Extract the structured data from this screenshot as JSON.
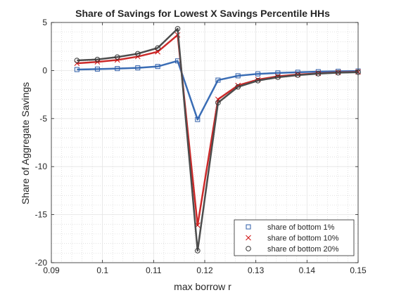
{
  "chart_data": {
    "type": "line",
    "title": "Share of Savings for Lowest X Savings Percentile HHs",
    "xlabel": "max borrow r",
    "ylabel": "Share of Aggregate Savings",
    "xlim": [
      0.09,
      0.15
    ],
    "ylim": [
      -20,
      5
    ],
    "x_ticks": [
      0.09,
      0.1,
      0.11,
      0.12,
      0.13,
      0.14,
      0.15
    ],
    "x_tick_labels": [
      "0.09",
      "0.1",
      "0.11",
      "0.12",
      "0.13",
      "0.14",
      "0.15"
    ],
    "y_ticks": [
      -20,
      -15,
      -10,
      -5,
      0,
      5
    ],
    "y_tick_labels": [
      "-20",
      "-15",
      "-10",
      "-5",
      "0",
      "5"
    ],
    "grid": true,
    "minor_grid": true,
    "legend_position": "bottom-right",
    "x": [
      0.095,
      0.099,
      0.1029,
      0.1069,
      0.1108,
      0.1147,
      0.1186,
      0.1226,
      0.1265,
      0.1304,
      0.1343,
      0.1382,
      0.1422,
      0.1461,
      0.15
    ],
    "series": [
      {
        "name": "share of bottom 1%",
        "color": "#3a6db5",
        "marker": "square",
        "values": [
          0.1,
          0.15,
          0.2,
          0.28,
          0.42,
          1.0,
          -5.1,
          -1.0,
          -0.55,
          -0.35,
          -0.25,
          -0.18,
          -0.12,
          -0.08,
          -0.05
        ]
      },
      {
        "name": "share of bottom 10%",
        "color": "#cc2a2a",
        "marker": "x",
        "values": [
          0.75,
          0.9,
          1.1,
          1.45,
          1.95,
          3.7,
          -16.1,
          -3.0,
          -1.55,
          -0.95,
          -0.6,
          -0.42,
          -0.3,
          -0.2,
          -0.15
        ]
      },
      {
        "name": "share of bottom 20%",
        "color": "#4d4d4d",
        "marker": "circle",
        "values": [
          1.05,
          1.15,
          1.4,
          1.75,
          2.35,
          4.35,
          -18.75,
          -3.35,
          -1.7,
          -1.05,
          -0.7,
          -0.48,
          -0.33,
          -0.23,
          -0.18
        ]
      }
    ]
  }
}
